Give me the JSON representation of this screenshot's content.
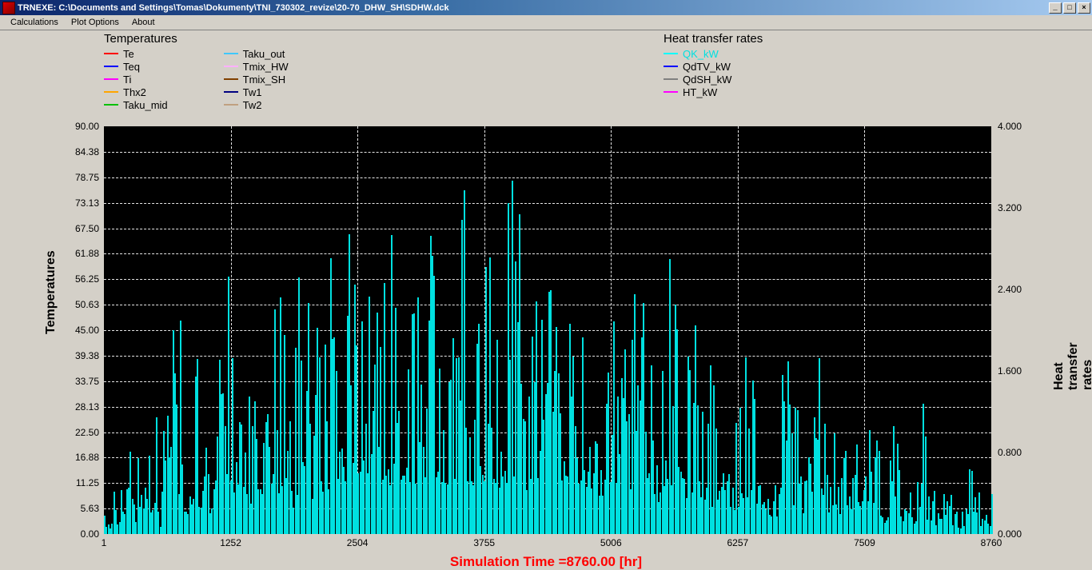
{
  "window": {
    "title": "TRNEXE: C:\\Documents and Settings\\Tomas\\Dokumenty\\TNI_730302_revize\\20-70_DHW_SH\\SDHW.dck",
    "min_glyph": "_",
    "max_glyph": "□",
    "close_glyph": "×"
  },
  "menu": {
    "calculations": "Calculations",
    "plot_options": "Plot Options",
    "about": "About"
  },
  "legend_left": {
    "title": "Temperatures",
    "col1": [
      {
        "color": "#ff0000",
        "label": "Te"
      },
      {
        "color": "#0000ff",
        "label": "Teq"
      },
      {
        "color": "#ff00ff",
        "label": "Ti"
      },
      {
        "color": "#ffa500",
        "label": "Thx2"
      },
      {
        "color": "#00c000",
        "label": "Taku_mid"
      }
    ],
    "col2": [
      {
        "color": "#40c8ff",
        "label": "Taku_out"
      },
      {
        "color": "#ffb0ff",
        "label": "Tmix_HW"
      },
      {
        "color": "#804000",
        "label": "Tmix_SH"
      },
      {
        "color": "#000080",
        "label": "Tw1"
      },
      {
        "color": "#c0a080",
        "label": "Tw2"
      }
    ]
  },
  "legend_right": {
    "title": "Heat transfer rates",
    "items": [
      {
        "color": "#00ffff",
        "label": "QK_kW",
        "text_color": "#00e0e0"
      },
      {
        "color": "#0000ff",
        "label": "QdTV_kW",
        "text_color": "#000"
      },
      {
        "color": "#808080",
        "label": "QdSH_kW",
        "text_color": "#000"
      },
      {
        "color": "#ff00ff",
        "label": "HT_kW",
        "text_color": "#000"
      }
    ]
  },
  "chart": {
    "type": "dense-line",
    "background_color": "#000000",
    "grid_color": "#ffffff",
    "series_color": "#00e0e0",
    "left_axis": {
      "title": "Temperatures",
      "min": 0.0,
      "max": 90.0,
      "ticks": [
        "90.00",
        "84.38",
        "78.75",
        "73.13",
        "67.50",
        "61.88",
        "56.25",
        "50.63",
        "45.00",
        "39.38",
        "33.75",
        "28.13",
        "22.50",
        "16.88",
        "11.25",
        "5.63",
        "0.00"
      ]
    },
    "right_axis": {
      "title": "Heat transfer rates",
      "min": 0.0,
      "max": 4.0,
      "ticks": [
        "4.000",
        "3.200",
        "2.400",
        "1.600",
        "0.800",
        "0.000"
      ]
    },
    "x_axis": {
      "min": 1,
      "max": 8760,
      "ticks": [
        "1",
        "1252",
        "2504",
        "3755",
        "5006",
        "6257",
        "7509",
        "8760"
      ]
    },
    "simulation_label": "Simulation Time =8760.00 [hr]",
    "envelope_pct": [
      10,
      8,
      12,
      15,
      18,
      14,
      29,
      9,
      22,
      7,
      26,
      30,
      35,
      8,
      55,
      48,
      58,
      62,
      55,
      22,
      45,
      50,
      40,
      35,
      18,
      38,
      70,
      45,
      60,
      65,
      72,
      50,
      55,
      42,
      38,
      48,
      60,
      68,
      65,
      78,
      72,
      60,
      55,
      45,
      40,
      62,
      68,
      75,
      52,
      58,
      48,
      45,
      70,
      80,
      85,
      90,
      78,
      82,
      88,
      97,
      92,
      70,
      65,
      90,
      85,
      75,
      70,
      80,
      95,
      88,
      92,
      80,
      72,
      68,
      78,
      85,
      98,
      90,
      82,
      75,
      70,
      92,
      88,
      95,
      85,
      78,
      72,
      68,
      80,
      90,
      96,
      85,
      75,
      70,
      88,
      92,
      85,
      78,
      72,
      68,
      80,
      90,
      85,
      75,
      70,
      65,
      78,
      90,
      85,
      72,
      68,
      62,
      75,
      80,
      72,
      65,
      58,
      70,
      85,
      78,
      65,
      60,
      55,
      72,
      80,
      90,
      75,
      65,
      60,
      50,
      45,
      55,
      72,
      68,
      58,
      52,
      48,
      60,
      70,
      58,
      50,
      45,
      40,
      55,
      62,
      50,
      45,
      38,
      34,
      48,
      55,
      60,
      48,
      40,
      35,
      30,
      25,
      30,
      45,
      55,
      42,
      35,
      30,
      28,
      38,
      45,
      50,
      62,
      45,
      33,
      30,
      26,
      35,
      42,
      30,
      25,
      22,
      28,
      35,
      30,
      25,
      20,
      17,
      25,
      32,
      22,
      18,
      15,
      12,
      18,
      25,
      35,
      16,
      13,
      10,
      15,
      22,
      18,
      14,
      11,
      8,
      12,
      18,
      28,
      11,
      9,
      7,
      10
    ]
  }
}
